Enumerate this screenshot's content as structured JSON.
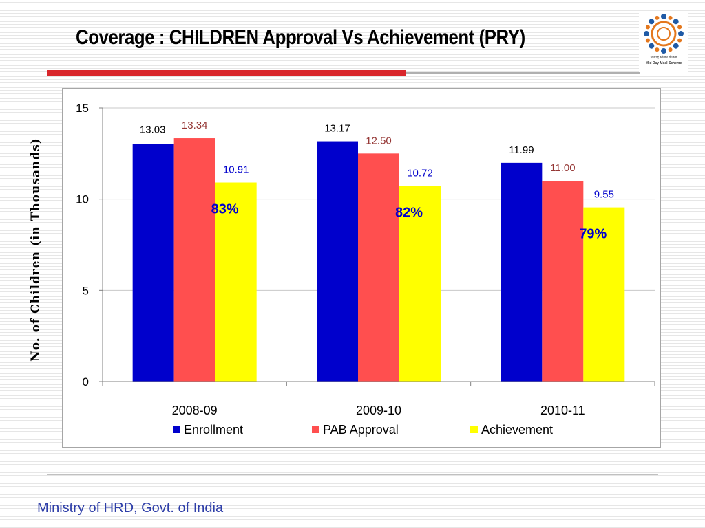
{
  "slide": {
    "title": "Coverage : CHILDREN Approval Vs Achievement (PRY)",
    "footer": "Ministry of HRD, Govt. of India",
    "logo": {
      "caption_hindi": "मध्याह्न भोजन योजना",
      "caption_english": "Mid Day Meal Scheme",
      "icon": "children-circle-logo"
    },
    "accent_colors": {
      "rule": "#d9262b",
      "footer_text": "#2e3ea8"
    }
  },
  "chart_data": {
    "type": "bar",
    "categories": [
      "2008-09",
      "2009-10",
      "2010-11"
    ],
    "series": [
      {
        "name": "Enrollment",
        "values": [
          13.03,
          13.17,
          11.99
        ],
        "labels": [
          "13.03",
          "13.17",
          "11.99"
        ],
        "color": "#0000cc",
        "label_color": "#000000"
      },
      {
        "name": "PAB Approval",
        "values": [
          13.34,
          12.5,
          11.0
        ],
        "labels": [
          "13.34",
          "12.50",
          "11.00"
        ],
        "color": "#ff4f4f",
        "label_color": "#953735"
      },
      {
        "name": "Achievement",
        "values": [
          10.91,
          10.72,
          9.55
        ],
        "labels": [
          "10.91",
          "10.72",
          "9.55"
        ],
        "color": "#ffff00",
        "label_color": "#0000cc"
      }
    ],
    "annotations": [
      "83%",
      "82%",
      "79%"
    ],
    "ylabel": "No. of Children (in Thousands)",
    "xlabel": "",
    "ylim": [
      0,
      15
    ],
    "yticks": [
      0,
      5,
      10,
      15
    ],
    "grid": true,
    "legend_position": "bottom"
  }
}
